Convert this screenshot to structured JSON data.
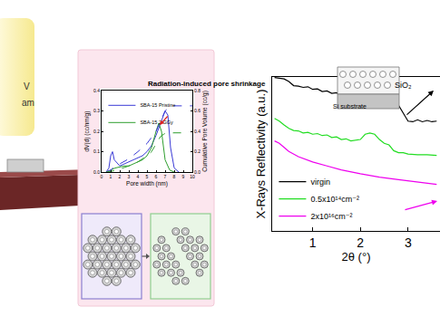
{
  "labels": {
    "beam": [
      "V",
      "am"
    ]
  },
  "chart_data": [
    {
      "type": "line",
      "title": "Radiation-induced pore shrinkage",
      "x_label": "Pore width (nm)",
      "y_label": "dV(d) (cc/nm/g)",
      "y2_label": "Cumulative Pore Volume (cc/g)",
      "xlim": [
        0,
        10
      ],
      "xticks": [
        0,
        1,
        2,
        3,
        4,
        5,
        6,
        7,
        8,
        9,
        10
      ],
      "ylim": [
        0,
        0.4
      ],
      "yticks": [
        {
          "value": 0,
          "label": "0.0"
        },
        0.1,
        0.2,
        0.3,
        0.4
      ],
      "y2lim": [
        0,
        0.8
      ],
      "y2ticks": [
        {
          "value": 0,
          "label": "0.0"
        },
        0.2,
        0.4,
        0.6,
        0.8
      ],
      "grid": false,
      "legend": "upper left",
      "series": [
        {
          "name": "SBA-15 Pristine",
          "color": "#3a3ad6",
          "line_style": "solid",
          "x": [
            0.5,
            0.8,
            1.0,
            1.2,
            1.4,
            1.6,
            2.0,
            2.5,
            3.0,
            3.5,
            4.0,
            4.5,
            5.0,
            5.5,
            6.0,
            6.5,
            7.0,
            7.3,
            7.6,
            8.0,
            8.5
          ],
          "values": [
            0,
            0.02,
            0.08,
            0.1,
            0.06,
            0.05,
            0.03,
            0.04,
            0.05,
            0.06,
            0.07,
            0.08,
            0.1,
            0.13,
            0.18,
            0.24,
            0.3,
            0.28,
            0.12,
            0.02,
            0
          ]
        },
        {
          "name": "SBA-15 2 GGy",
          "color": "#2e9e2e",
          "line_style": "solid",
          "x": [
            0.5,
            1.0,
            1.5,
            2.0,
            2.5,
            3.0,
            3.5,
            4.0,
            4.5,
            5.0,
            5.5,
            6.0,
            6.3,
            6.6,
            7.0,
            7.5,
            8.0
          ],
          "values": [
            0,
            0.01,
            0.02,
            0.025,
            0.03,
            0.03,
            0.04,
            0.05,
            0.06,
            0.08,
            0.12,
            0.2,
            0.24,
            0.2,
            0.06,
            0.01,
            0
          ]
        },
        {
          "color": "#3a3ad6",
          "line_style": "dashed",
          "axis": "y2",
          "x": [
            0.5,
            1.0,
            1.5,
            2.0,
            3.0,
            4.0,
            5.0,
            6.0,
            6.5,
            7.0,
            7.5,
            8.0,
            10.0
          ],
          "values": [
            0,
            0.02,
            0.06,
            0.08,
            0.13,
            0.2,
            0.28,
            0.4,
            0.5,
            0.6,
            0.64,
            0.65,
            0.65
          ]
        },
        {
          "color": "#2e9e2e",
          "line_style": "dashed",
          "axis": "y2",
          "x": [
            0.5,
            1.0,
            2.0,
            3.0,
            4.0,
            5.0,
            5.5,
            6.0,
            6.5,
            7.0,
            7.5,
            8.0,
            9.5
          ],
          "values": [
            0,
            0.005,
            0.03,
            0.06,
            0.1,
            0.16,
            0.2,
            0.27,
            0.35,
            0.38,
            0.385,
            0.385,
            0.385
          ]
        }
      ]
    },
    {
      "type": "line",
      "x_label": "2θ (°)",
      "y_label": "X-Rays Reflectivity (a.u.)",
      "log": "y",
      "xlim": [
        0.15,
        3.67
      ],
      "xticks": [
        1,
        2,
        3
      ],
      "ylim": [
        1e-11,
        1
      ],
      "yticks": [],
      "tick_labels": "x",
      "grid": false,
      "legend": "lower left",
      "annotations": [
        "SiO₂",
        "Si substrate"
      ],
      "series": [
        {
          "name": "virgin",
          "color": "#000000",
          "line_style": "solid",
          "x": [
            0.2,
            0.3,
            0.4,
            0.5,
            0.6,
            0.7,
            0.8,
            0.9,
            1.0,
            1.1,
            1.2,
            1.3,
            1.4,
            1.5,
            1.6,
            1.7,
            1.8,
            1.9,
            2.0,
            2.1,
            2.2,
            2.3,
            2.4,
            2.5,
            2.6,
            2.7,
            2.8,
            2.9,
            3.0,
            3.1,
            3.2,
            3.3,
            3.4,
            3.5,
            3.6
          ],
          "values": [
            0.9,
            0.8,
            0.72,
            0.47,
            0.24,
            0.22,
            0.18,
            0.2,
            0.13,
            0.14,
            0.092,
            0.1,
            0.067,
            0.074,
            0.048,
            0.054,
            0.035,
            0.054,
            0.083,
            0.1,
            0.083,
            0.043,
            0.018,
            0.0095,
            0.013,
            0.0076,
            0.0095,
            0.0026,
            0.0007,
            0.00063,
            0.00087,
            0.00063,
            0.00078,
            0.00063,
            0.0007
          ]
        },
        {
          "name": "0.5x10¹⁴cm⁻²",
          "color": "#22dd22",
          "line_style": "solid",
          "x": [
            0.2,
            0.3,
            0.4,
            0.5,
            0.6,
            0.7,
            0.8,
            0.9,
            1.0,
            1.1,
            1.2,
            1.3,
            1.4,
            1.5,
            1.6,
            1.7,
            1.8,
            1.9,
            2.0,
            2.1,
            2.2,
            2.3,
            2.4,
            2.5,
            2.6,
            2.7,
            2.8,
            2.9,
            3.0,
            3.2,
            3.4,
            3.6
          ],
          "values": [
            0.0011,
            0.0007,
            0.00037,
            0.00021,
            0.00015,
            0.00014,
            0.0001,
            0.00011,
            8.1e-05,
            9e-05,
            6.5e-05,
            7.2e-05,
            4.7e-05,
            5.2e-05,
            3.4e-05,
            3.8e-05,
            2.7e-05,
            3e-05,
            3.4e-05,
            8.1e-05,
            0.0001,
            8.1e-05,
            3.4e-05,
            1.8e-05,
            1.4e-05,
            5.4e-06,
            3.9e-06,
            3.9e-06,
            3.1e-06,
            2.8e-06,
            2.8e-06,
            2.5e-06
          ]
        },
        {
          "name": "2x10¹⁶cm⁻²",
          "color": "#ee00ee",
          "line_style": "solid",
          "x": [
            0.2,
            0.3,
            0.4,
            0.5,
            0.7,
            1.0,
            1.3,
            1.6,
            2.0,
            2.4,
            2.8,
            3.2,
            3.6
          ],
          "values": [
            2.7e-05,
            1.8e-05,
            9.2e-06,
            4.8e-06,
            2e-06,
            8.5e-07,
            4.4e-07,
            2.3e-07,
            1.2e-07,
            7e-08,
            4.6e-08,
            3e-08,
            2.1e-08
          ]
        }
      ]
    }
  ]
}
